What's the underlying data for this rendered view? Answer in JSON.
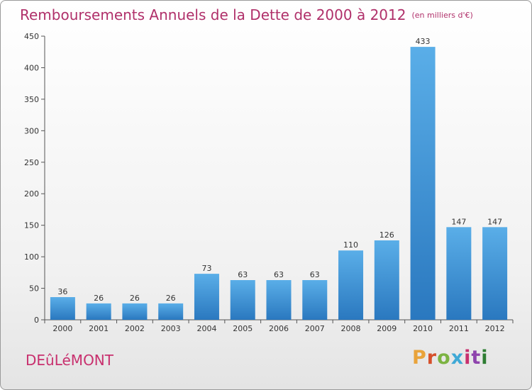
{
  "chart_data": {
    "type": "bar",
    "title": "Remboursements Annuels de la Dette de 2000 à 2012",
    "subtitle": "(en milliers d'€)",
    "categories": [
      "2000",
      "2001",
      "2002",
      "2003",
      "2004",
      "2005",
      "2006",
      "2007",
      "2008",
      "2009",
      "2010",
      "2011",
      "2012"
    ],
    "values": [
      36,
      26,
      26,
      26,
      73,
      63,
      63,
      63,
      110,
      126,
      433,
      147,
      147
    ],
    "ylim": [
      0,
      450
    ],
    "yticks": [
      0,
      50,
      100,
      150,
      200,
      250,
      300,
      350,
      400,
      450
    ],
    "grid": false,
    "bar_color": "#3b8fd6"
  },
  "footer": {
    "commune": "DEûLéMONT",
    "brand": "Proxiti",
    "brand_colors": [
      "#e9a33a",
      "#d6502b",
      "#7cb342",
      "#3fa9d6",
      "#c8306e",
      "#8e44ad",
      "#2e7d32"
    ]
  }
}
